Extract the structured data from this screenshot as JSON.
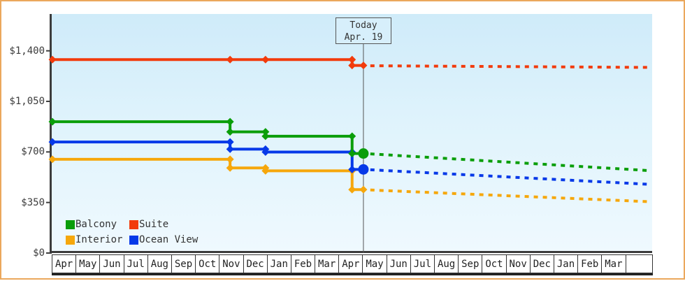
{
  "frame": {
    "border_color": "#eba85c",
    "background": "#ffffff"
  },
  "today_box": {
    "line1": "Today",
    "line2": "Apr. 19"
  },
  "chart_data": {
    "type": "line",
    "subtype": "stepped-price-history-with-projection",
    "title": "",
    "plot_background": [
      "#cfebf9",
      "#eff9fe"
    ],
    "y_axis": {
      "ylim": [
        0,
        1450
      ],
      "ticks": [
        {
          "label": "$0",
          "value": 0
        },
        {
          "label": "$350",
          "value": 350
        },
        {
          "label": "$700",
          "value": 700
        },
        {
          "label": "$1,050",
          "value": 1050
        },
        {
          "label": "$1,400",
          "value": 1400
        }
      ],
      "grid": false
    },
    "x_axis": {
      "months": [
        "Apr",
        "May",
        "Jun",
        "Jul",
        "Aug",
        "Sep",
        "Oct",
        "Nov",
        "Dec",
        "Jan",
        "Feb",
        "Mar",
        "Apr",
        "May",
        "Jun",
        "Jul",
        "Aug",
        "Sep",
        "Oct",
        "Nov",
        "Dec",
        "Jan",
        "Feb",
        "Mar"
      ]
    },
    "today": {
      "label": "Today",
      "date": "Apr. 19",
      "month_offset": 12.64
    },
    "series": [
      {
        "name": "Balcony",
        "color": "#0a9e0a",
        "today_marker": "big-dot",
        "points": [
          {
            "t": 0,
            "price": 909
          },
          {
            "t": 7.22,
            "price": 839
          },
          {
            "t": 8.66,
            "price": 809
          },
          {
            "t": 12.18,
            "price": 689
          }
        ],
        "today_price": 689,
        "projected_price": 570
      },
      {
        "name": "Suite",
        "color": "#f23b0c",
        "today_marker": "diamond",
        "points": [
          {
            "t": 0,
            "price": 1339
          },
          {
            "t": 7.22,
            "price": 1339
          },
          {
            "t": 8.66,
            "price": 1339
          },
          {
            "t": 12.18,
            "price": 1299
          }
        ],
        "today_price": 1299,
        "projected_price": 1285
      },
      {
        "name": "Interior",
        "color": "#f6a70b",
        "today_marker": "diamond",
        "points": [
          {
            "t": 0,
            "price": 649
          },
          {
            "t": 7.22,
            "price": 589
          },
          {
            "t": 8.66,
            "price": 569
          },
          {
            "t": 12.18,
            "price": 439
          }
        ],
        "today_price": 439,
        "projected_price": 355
      },
      {
        "name": "Ocean View",
        "color": "#0639e8",
        "today_marker": "big-dot",
        "points": [
          {
            "t": 0,
            "price": 769
          },
          {
            "t": 7.22,
            "price": 719
          },
          {
            "t": 8.66,
            "price": 699
          },
          {
            "t": 12.18,
            "price": 579
          }
        ],
        "today_price": 579,
        "projected_price": 475
      }
    ],
    "legend": {
      "position": "bottom-left",
      "entries": [
        "Balcony",
        "Suite",
        "Interior",
        "Ocean View"
      ]
    }
  }
}
